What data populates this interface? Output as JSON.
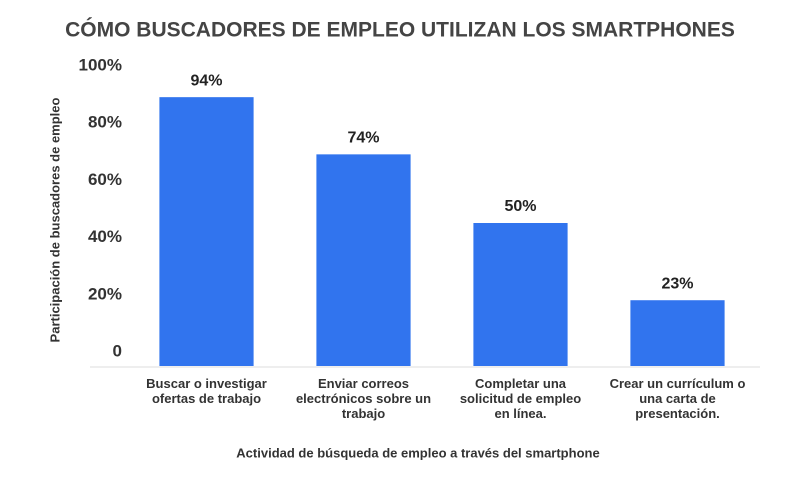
{
  "chart_data": {
    "type": "bar",
    "title": "CÓMO BUSCADORES DE EMPLEO UTILIZAN LOS SMARTPHONES",
    "y_label": "Participación de buscadores de empleo",
    "x_label": "Actividad de búsqueda de empleo a través del smartphone",
    "categories": [
      "Buscar o investigar ofertas de trabajo",
      "Enviar correos electrónicos sobre un trabajo",
      "Completar una solicitud de empleo en línea.",
      "Crear un currículum o una carta de presentación."
    ],
    "values": [
      94,
      74,
      50,
      23
    ],
    "value_labels": [
      "94%",
      "74%",
      "50%",
      "23%"
    ],
    "color": "#3174ee",
    "ylim": [
      0,
      100
    ],
    "yticks": [
      0,
      {
        "value": 20,
        "label": "20%"
      },
      {
        "value": 40,
        "label": "40%"
      },
      {
        "value": 60,
        "label": "60%"
      },
      {
        "value": 80,
        "label": "80%"
      },
      {
        "value": 100,
        "label": "100%"
      }
    ],
    "grid": false
  }
}
